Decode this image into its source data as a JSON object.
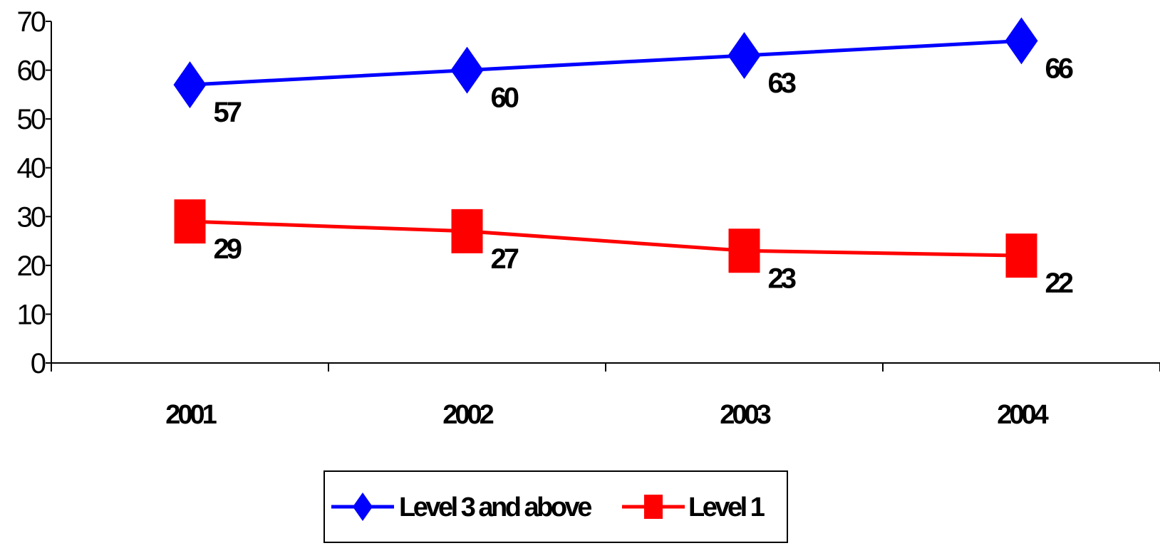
{
  "chart_data": {
    "type": "line",
    "categories": [
      "2001",
      "2002",
      "2003",
      "2004"
    ],
    "series": [
      {
        "name": "Level 3 and above",
        "values": [
          57,
          60,
          63,
          66
        ],
        "color": "#0000ff",
        "marker": "diamond"
      },
      {
        "name": "Level 1",
        "values": [
          29,
          27,
          23,
          22
        ],
        "color": "#ff0000",
        "marker": "square"
      }
    ],
    "ylim": [
      0,
      70
    ],
    "yticks": [
      0,
      10,
      20,
      30,
      40,
      50,
      60,
      70
    ],
    "grid": false,
    "legend_position": "bottom",
    "show_data_labels": true
  }
}
